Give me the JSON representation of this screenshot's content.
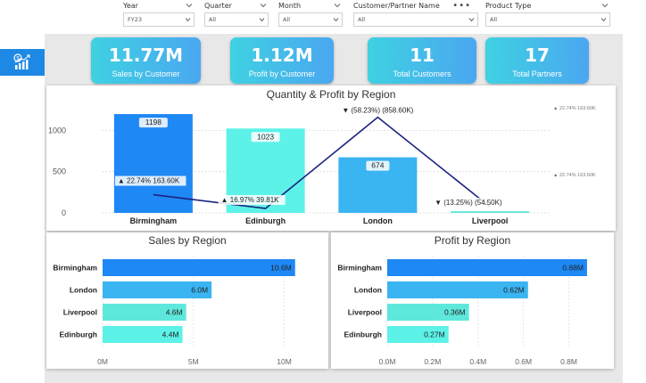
{
  "filters": [
    {
      "title": "Year",
      "value": "FY23"
    },
    {
      "title": "Quarter",
      "value": "All"
    },
    {
      "title": "Month",
      "value": "All"
    },
    {
      "title": "Customer/Partner Name",
      "value": "All"
    },
    {
      "title": "Product Type",
      "value": "All"
    }
  ],
  "cards": [
    {
      "value": "11.77M",
      "label": "Sales by Customer"
    },
    {
      "value": "1.12M",
      "label": "Profit by Customer"
    },
    {
      "value": "11",
      "label": "Total Customers"
    },
    {
      "value": "17",
      "label": "Total Partners"
    }
  ],
  "colors": {
    "birmingham": "#1e88f5",
    "edinburgh": "#5cf2e8",
    "london": "#3bb4f2",
    "liverpool": "#5ee8dc",
    "line": "#1a237e",
    "rail_tab": "#1e88e5"
  },
  "chart_data": [
    {
      "type": "bar",
      "title": "Quantity & Profit by Region",
      "categories": [
        "Birmingham",
        "Edinburgh",
        "London",
        "Liverpool"
      ],
      "series": [
        {
          "values": [
            1198,
            1023,
            674,
            20
          ]
        },
        {
          "values": [
            163.6,
            39.81,
            858.6,
            54.5
          ]
        }
      ],
      "data_labels": [
        "1198",
        "1023",
        "674"
      ],
      "annotations": [
        "▲ 22.74% 163.60K",
        "▲ 16.97% 39.81K",
        "▼ (58.23%) (858.60K)",
        "▼ (13.25%) (54.50K)"
      ],
      "y_ticks": [
        "0",
        "500",
        "1000"
      ],
      "right_ticks": [
        "▲ 22.74% 163.60K",
        "▲ 22.74% 163.60K"
      ],
      "ylim": [
        0,
        1350
      ]
    },
    {
      "type": "bar",
      "orientation": "horizontal",
      "title": "Sales by Region",
      "categories": [
        "Birmingham",
        "London",
        "Liverpool",
        "Edinburgh"
      ],
      "values": [
        10.6,
        6.0,
        4.6,
        4.4
      ],
      "data_labels": [
        "10.6M",
        "6.0M",
        "4.6M",
        "4.4M"
      ],
      "x_ticks": [
        "0M",
        "5M",
        "10M"
      ],
      "xlim": [
        0,
        11.3
      ]
    },
    {
      "type": "bar",
      "orientation": "horizontal",
      "title": "Profit by Region",
      "categories": [
        "Birmingham",
        "London",
        "Liverpool",
        "Edinburgh"
      ],
      "values": [
        0.88,
        0.62,
        0.36,
        0.27
      ],
      "data_labels": [
        "0.88M",
        "0.62M",
        "0.36M",
        "0.27M"
      ],
      "x_ticks": [
        "0.0M",
        "0.2M",
        "0.4M",
        "0.6M",
        "0.8M"
      ],
      "xlim": [
        0,
        0.9
      ]
    }
  ]
}
